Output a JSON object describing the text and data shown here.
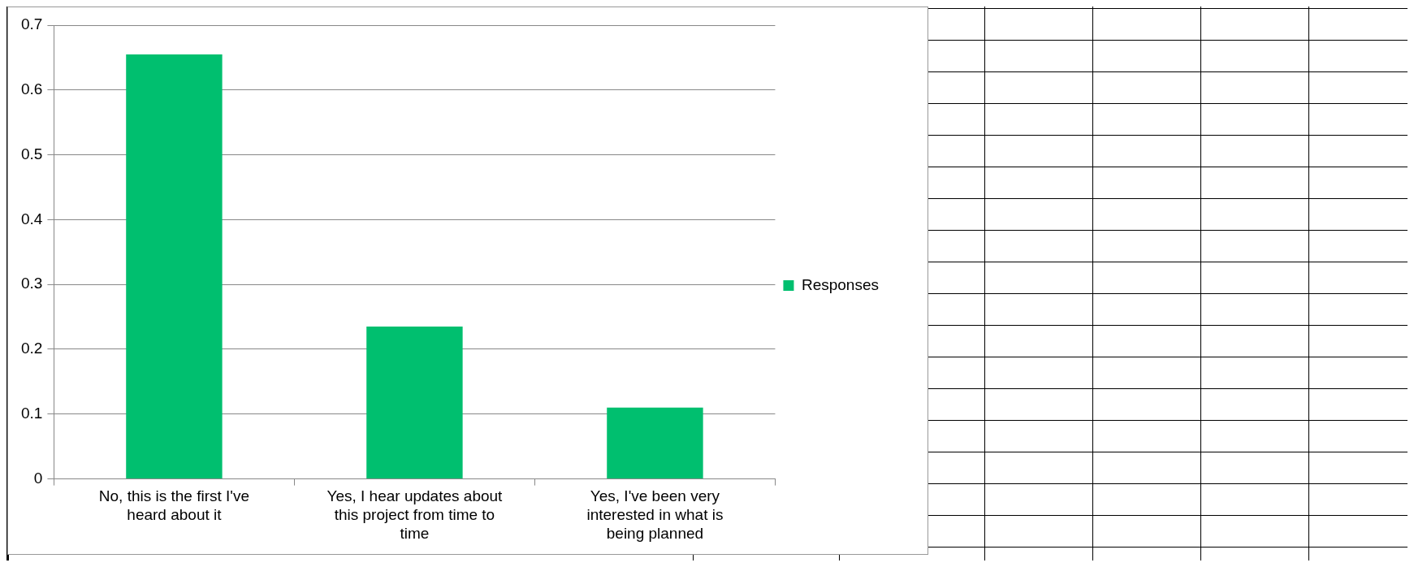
{
  "chart_data": {
    "type": "bar",
    "categories": [
      "No, this is the first I've heard about it",
      "Yes, I hear updates about this project from time to time",
      "Yes, I've been very interested in what is being planned"
    ],
    "series": [
      {
        "name": "Responses",
        "color": "#00bf6f",
        "values": [
          0.655,
          0.235,
          0.11
        ]
      }
    ],
    "ylim": [
      0,
      0.7
    ],
    "yticks": [
      0,
      0.1,
      0.2,
      0.3,
      0.4,
      0.5,
      0.6,
      0.7
    ],
    "grid": "y",
    "legend": "right"
  }
}
